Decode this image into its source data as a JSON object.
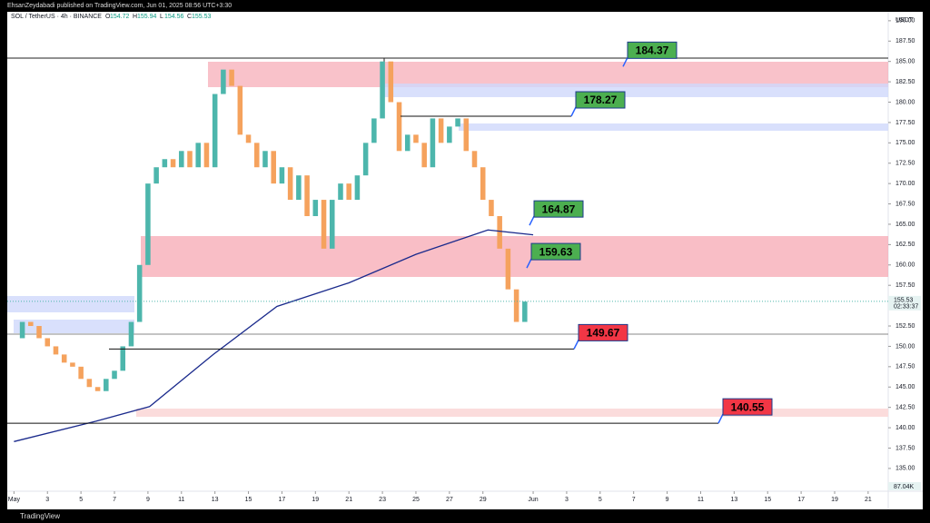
{
  "header": {
    "publisher": "EhsanZeydabadi published on TradingView.com, Jun 01, 2025 08:56 UTC+3:30",
    "brand": "TradingView"
  },
  "chart_data": {
    "type": "candlestick",
    "symbol": "SOL / TetherUS · 4h · BINANCE",
    "ohlc": [
      {
        "label": "O",
        "value": 154.72
      },
      {
        "label": "H",
        "value": 155.94
      },
      {
        "label": "L",
        "value": 154.56
      },
      {
        "label": "C",
        "value": 155.53
      }
    ],
    "currency": "USDT",
    "last_price": 155.53,
    "countdown": "02:33:37",
    "volume_label": "87.04K",
    "up_color": "#4db6ac",
    "down_color": "#f5a25d",
    "x": [
      1,
      1.5,
      2,
      2.5,
      3,
      3.5,
      4,
      4.5,
      5,
      5.5,
      6,
      6.5,
      7,
      7.5,
      8,
      8.5,
      9,
      9.5,
      10,
      10.5,
      11,
      11.5,
      12,
      12.5,
      13,
      13.5,
      14,
      14.5,
      15,
      15.5,
      16,
      16.5,
      17,
      17.5,
      18,
      18.5,
      19,
      19.5,
      20,
      20.5,
      21,
      21.5,
      22,
      22.5,
      23,
      23.5,
      24,
      24.5,
      25,
      25.5,
      26,
      26.5,
      27,
      27.5,
      28,
      28.5,
      29,
      29.5,
      30,
      30.5,
      31,
      31.5
    ],
    "values": [
      151,
      153,
      152.5,
      151,
      150,
      149,
      148,
      147.5,
      146,
      145,
      144.5,
      146,
      147,
      150,
      153,
      160,
      170,
      172,
      173,
      172,
      174,
      172,
      175,
      172,
      181,
      184,
      182,
      176,
      175,
      172,
      174,
      170,
      172,
      168,
      171,
      166,
      168,
      162,
      168,
      170,
      168,
      171,
      175,
      178,
      185,
      180,
      174,
      176,
      175,
      172,
      178,
      175,
      177,
      178,
      174,
      172,
      168,
      166,
      162,
      157,
      153,
      155.5
    ],
    "series": [
      {
        "color": "#1a2a8c",
        "x": [
          1,
          5.9,
          9.1,
          12.9,
          16.7,
          21,
          25,
          29.3,
          32
        ],
        "values": [
          138.3,
          140.8,
          142.6,
          149,
          154.9,
          157.8,
          161.3,
          164.3,
          163.7
        ]
      }
    ],
    "annotations": [
      184.37,
      178.27,
      164.87,
      159.63,
      149.67,
      140.55
    ],
    "annotation_colors": [
      "#4caf50",
      "#4caf50",
      "#4caf50",
      "#4caf50",
      "#f23645",
      "#f23645"
    ],
    "xlim": [
      0.6,
      53.2
    ],
    "ylim": [
      132.2,
      191.1
    ],
    "yticks": [
      {
        "value": 135,
        "label": "135.00"
      },
      {
        "value": 137.5,
        "label": "137.50"
      },
      {
        "value": 140,
        "label": "140.00"
      },
      {
        "value": 142.5,
        "label": "142.50"
      },
      {
        "value": 145,
        "label": "145.00"
      },
      {
        "value": 147.5,
        "label": "147.50"
      },
      {
        "value": 150,
        "label": "150.00"
      },
      {
        "value": 152.5,
        "label": "152.50"
      },
      {
        "value": 155,
        "label": "155.00"
      },
      {
        "value": 157.5,
        "label": "157.50"
      },
      {
        "value": 160,
        "label": "160.00"
      },
      {
        "value": 162.5,
        "label": "162.50"
      },
      {
        "value": 165,
        "label": "165.00"
      },
      {
        "value": 167.5,
        "label": "167.50"
      },
      {
        "value": 170,
        "label": "170.00"
      },
      {
        "value": 172.5,
        "label": "172.50"
      },
      {
        "value": 175,
        "label": "175.00"
      },
      {
        "value": 177.5,
        "label": "177.50"
      },
      {
        "value": 180,
        "label": "180.00"
      },
      {
        "value": 182.5,
        "label": "182.50"
      },
      {
        "value": 185,
        "label": "185.00"
      },
      {
        "value": 187.5,
        "label": "187.50"
      },
      {
        "value": 190,
        "label": "190.00"
      }
    ],
    "xticks": [
      {
        "value": 1,
        "label": "May"
      },
      3,
      5,
      7,
      9,
      11,
      13,
      15,
      17,
      19,
      21,
      23,
      25,
      27,
      29,
      {
        "value": 32,
        "label": "Jun"
      },
      {
        "value": 34,
        "label": "3"
      },
      {
        "value": 36,
        "label": "5"
      },
      {
        "value": 38,
        "label": "7"
      },
      {
        "value": 40,
        "label": "9"
      },
      {
        "value": 42,
        "label": "11"
      },
      {
        "value": 44,
        "label": "13"
      },
      {
        "value": 46,
        "label": "15"
      },
      {
        "value": 48,
        "label": "17"
      },
      {
        "value": 50,
        "label": "19"
      },
      {
        "value": 52,
        "label": "21"
      }
    ]
  }
}
